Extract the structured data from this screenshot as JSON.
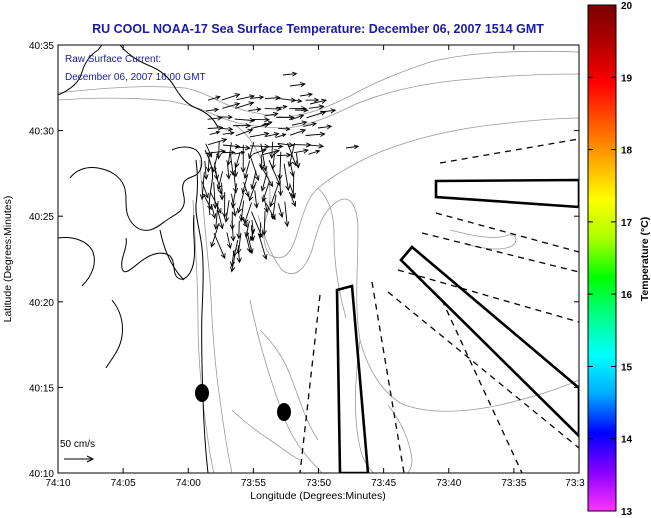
{
  "title": "RU COOL  NOAA-17  Sea Surface Temperature:  December 06, 2007 1514 GMT",
  "annotation": {
    "line1": "Raw Surface Current:",
    "line2": "December 06, 2007 16:00 GMT"
  },
  "axes": {
    "xlabel": "Longitude (Degrees:Minutes)",
    "ylabel": "Latitude (Degrees:Minutes)",
    "x_ticks": [
      "74:10",
      "74:05",
      "74:00",
      "73:55",
      "73:50",
      "73:45",
      "73:40",
      "73:35",
      "73:3"
    ],
    "y_ticks": [
      "40:35",
      "40:30",
      "40:25",
      "40:20",
      "40:15",
      "40:10"
    ]
  },
  "scale_bar": {
    "label": "50 cm/s"
  },
  "colorbar": {
    "label": "Temperature (°C)",
    "ticks": [
      "20",
      "19",
      "18",
      "17",
      "16",
      "15",
      "14",
      "13"
    ],
    "min": 13,
    "max": 20,
    "colors": [
      "#ff33ff",
      "#8800ff",
      "#0000ff",
      "#00aaff",
      "#00ffff",
      "#00ff88",
      "#00ff00",
      "#aaff00",
      "#ffff00",
      "#ffaa00",
      "#ff5500",
      "#ff0000",
      "#b30000",
      "#7a0000"
    ]
  }
}
